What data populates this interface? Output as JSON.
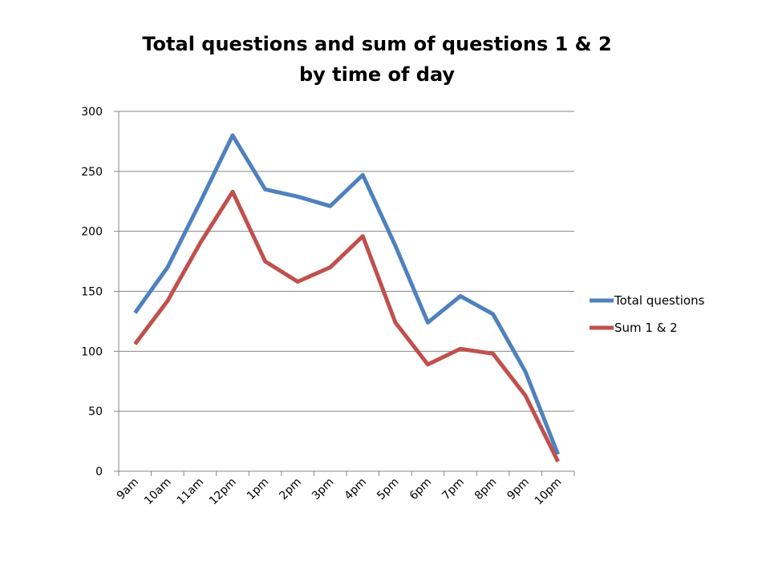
{
  "chart_data": {
    "type": "line",
    "title_lines": [
      "Total questions and sum of questions 1 & 2",
      "by time of day"
    ],
    "categories": [
      "9am",
      "10am",
      "11am",
      "12pm",
      "1pm",
      "2pm",
      "3pm",
      "4pm",
      "5pm",
      "6pm",
      "7pm",
      "8pm",
      "9pm",
      "10pm"
    ],
    "series": [
      {
        "name": "Total questions",
        "color": "#4f81bd",
        "values": [
          132,
          170,
          224,
          280,
          235,
          229,
          221,
          247,
          188,
          124,
          146,
          131,
          83,
          14
        ]
      },
      {
        "name": "Sum 1 & 2",
        "color": "#c0504d",
        "values": [
          106,
          142,
          190,
          233,
          175,
          158,
          170,
          196,
          124,
          89,
          102,
          98,
          63,
          8
        ]
      }
    ],
    "yticks": [
      0,
      50,
      100,
      150,
      200,
      250,
      300
    ],
    "ylim": [
      0,
      300
    ],
    "grid": true,
    "legend_position": "right"
  }
}
